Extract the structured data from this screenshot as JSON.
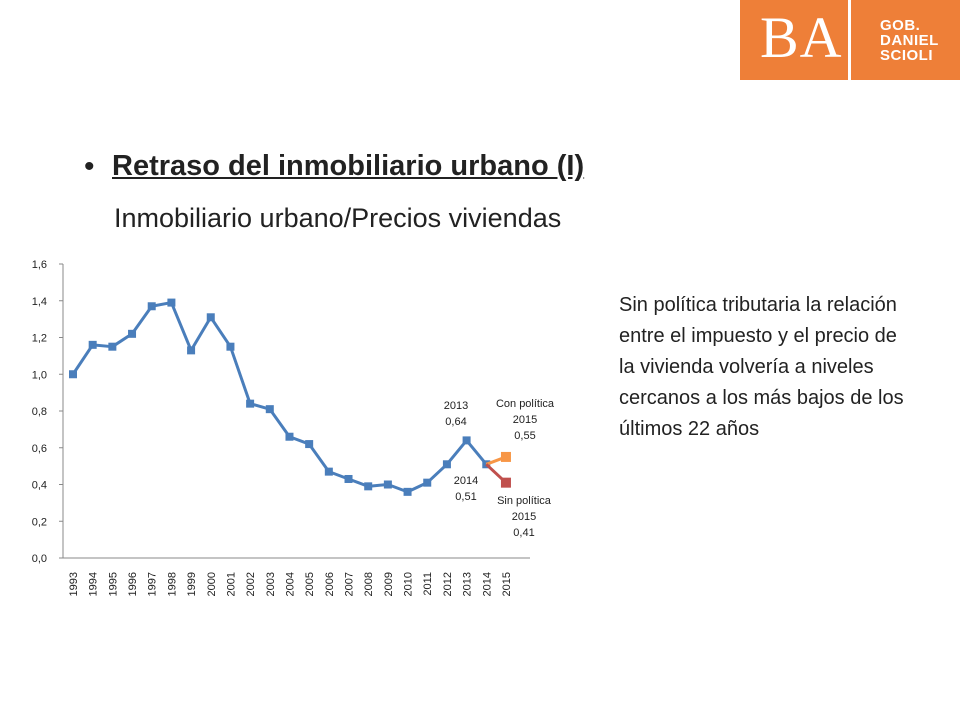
{
  "logo": {
    "text": "BA",
    "lines": [
      "GOB.",
      "DANIEL",
      "SCIOLI"
    ],
    "color": "#ee7f38"
  },
  "heading": {
    "bullet": "•",
    "title": "Retraso del inmobiliario urbano (I)",
    "subtitle": "Inmobiliario urbano/Precios viviendas"
  },
  "side_text": "Sin política tributaria la relación entre el impuesto y el precio de la vivienda volvería a niveles cercanos a los más bajos de los últimos 22 años",
  "chart_data": {
    "type": "line",
    "categories": [
      "1993",
      "1994",
      "1995",
      "1996",
      "1997",
      "1998",
      "1999",
      "2000",
      "2001",
      "2002",
      "2003",
      "2004",
      "2005",
      "2006",
      "2007",
      "2008",
      "2009",
      "2010",
      "2011",
      "2012",
      "2013",
      "2014",
      "2015"
    ],
    "ylim": [
      0,
      1.6
    ],
    "yticks": [
      "0,0",
      "0,2",
      "0,4",
      "0,6",
      "0,8",
      "1,0",
      "1,2",
      "1,4",
      "1,6"
    ],
    "grid": false,
    "series": [
      {
        "color": "#4a7ebb",
        "values": [
          1.0,
          1.16,
          1.15,
          1.22,
          1.37,
          1.39,
          1.13,
          1.31,
          1.15,
          0.84,
          0.81,
          0.66,
          0.62,
          0.47,
          0.43,
          0.39,
          0.4,
          0.36,
          0.41,
          0.51,
          0.64,
          0.51,
          null
        ]
      },
      {
        "name": "Con política",
        "color": "#f79646",
        "from": [
          "2014",
          0.51
        ],
        "to": [
          "2015",
          0.55
        ]
      },
      {
        "name": "Sin política",
        "color": "#c0504d",
        "from": [
          "2014",
          0.51
        ],
        "to": [
          "2015",
          0.41
        ]
      }
    ],
    "annotations": [
      {
        "lines": [
          "2013",
          "0,64"
        ]
      },
      {
        "lines": [
          "Con política",
          "2015",
          "0,55"
        ]
      },
      {
        "lines": [
          "2014",
          "0,51"
        ]
      },
      {
        "lines": [
          "Sin política",
          "2015",
          "0,41"
        ]
      }
    ]
  }
}
